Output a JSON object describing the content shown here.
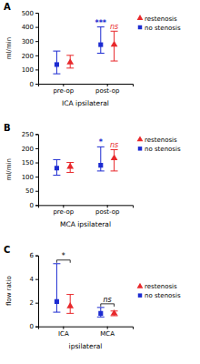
{
  "chart_data": [
    {
      "type": "scatter",
      "title": "A",
      "x_label": "ICA ipsilateral",
      "y_label": "ml/min",
      "categories": [
        "pre-op",
        "post-op"
      ],
      "ylim": [
        0,
        500
      ],
      "yticks": [
        0,
        100,
        200,
        300,
        400,
        500
      ],
      "legend": "upper right",
      "series": [
        {
          "name": "restenosis",
          "color": "#e8282b",
          "marker": "triangle",
          "values": [
            150,
            275
          ],
          "lower": [
            110,
            160
          ],
          "upper": [
            200,
            370
          ]
        },
        {
          "name": "no stenosis",
          "color": "#1c2bd1",
          "marker": "square",
          "values": [
            135,
            275
          ],
          "lower": [
            70,
            215
          ],
          "upper": [
            230,
            400
          ]
        }
      ],
      "annotations": [
        {
          "text": "***",
          "category": "post-op",
          "series": "no stenosis"
        },
        {
          "text": "ns",
          "category": "post-op",
          "series": "restenosis"
        }
      ]
    },
    {
      "type": "scatter",
      "title": "B",
      "x_label": "MCA ipsilateral",
      "y_label": "ml/min",
      "categories": [
        "pre-op",
        "post-op"
      ],
      "ylim": [
        0,
        250
      ],
      "yticks": [
        0,
        50,
        100,
        150,
        200,
        250
      ],
      "legend": "upper right",
      "series": [
        {
          "name": "restenosis",
          "color": "#e8282b",
          "marker": "triangle",
          "values": [
            135,
            165
          ],
          "lower": [
            115,
            120
          ],
          "upper": [
            150,
            195
          ]
        },
        {
          "name": "no stenosis",
          "color": "#1c2bd1",
          "marker": "square",
          "values": [
            130,
            140
          ],
          "lower": [
            105,
            120
          ],
          "upper": [
            160,
            205
          ]
        }
      ],
      "annotations": [
        {
          "text": "*",
          "category": "post-op",
          "series": "no stenosis"
        },
        {
          "text": "ns",
          "category": "post-op",
          "series": "restenosis"
        }
      ]
    },
    {
      "type": "scatter",
      "title": "C",
      "x_label": "ipsilateral",
      "y_label": "flow ratio",
      "categories": [
        "ICA",
        "MCA"
      ],
      "ylim": [
        0,
        6
      ],
      "yticks": [
        0,
        2,
        4,
        6
      ],
      "legend": "right",
      "series": [
        {
          "name": "restenosis",
          "color": "#e8282b",
          "marker": "triangle",
          "values": [
            1.7,
            1.1
          ],
          "lower": [
            1.1,
            0.9
          ],
          "upper": [
            2.7,
            1.3
          ]
        },
        {
          "name": "no stenosis",
          "color": "#1c2bd1",
          "marker": "square",
          "values": [
            2.1,
            1.1
          ],
          "lower": [
            1.2,
            0.8
          ],
          "upper": [
            5.3,
            1.6
          ]
        }
      ],
      "annotations": [
        {
          "text": "*",
          "category": "ICA"
        },
        {
          "text": "ns",
          "category": "MCA"
        }
      ]
    }
  ]
}
